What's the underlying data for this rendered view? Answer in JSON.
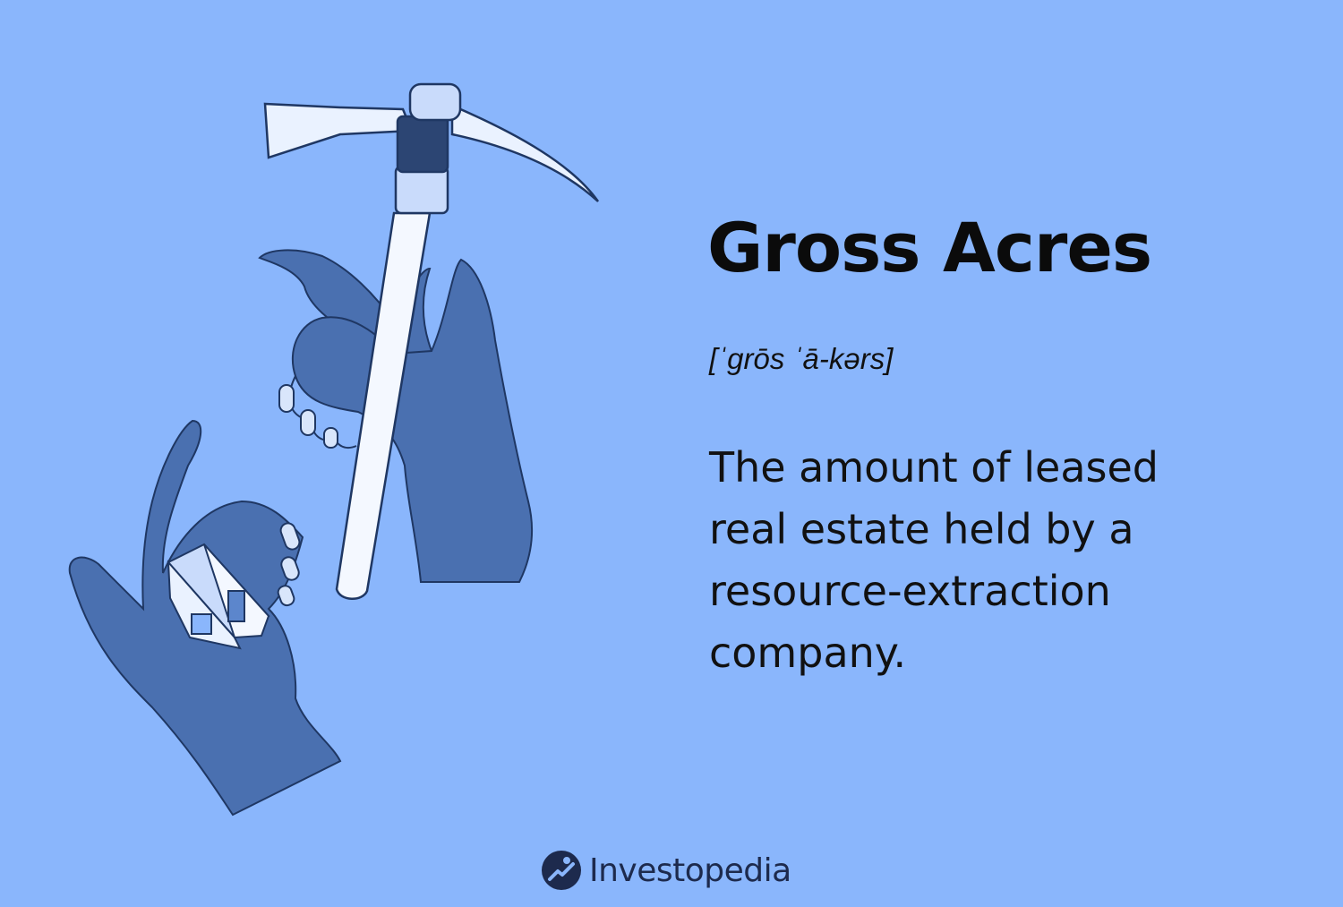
{
  "term": {
    "title": "Gross Acres",
    "pronunciation": "[ˈgrōs ˈā-kərs]",
    "definition": "The amount of leased real estate held by a resource-extraction company."
  },
  "brand": {
    "name": "Investopedia",
    "logo_icon": "investopedia-logo-icon"
  },
  "illustration": {
    "subject": "hands-hammer-house",
    "colors": {
      "background": "#8ab6fc",
      "hand": "#4a70b0",
      "hand_dark": "#2e4f8e",
      "tool_light": "#eaf2ff",
      "tool_dark": "#2c4573",
      "outline": "#1f3763"
    }
  }
}
